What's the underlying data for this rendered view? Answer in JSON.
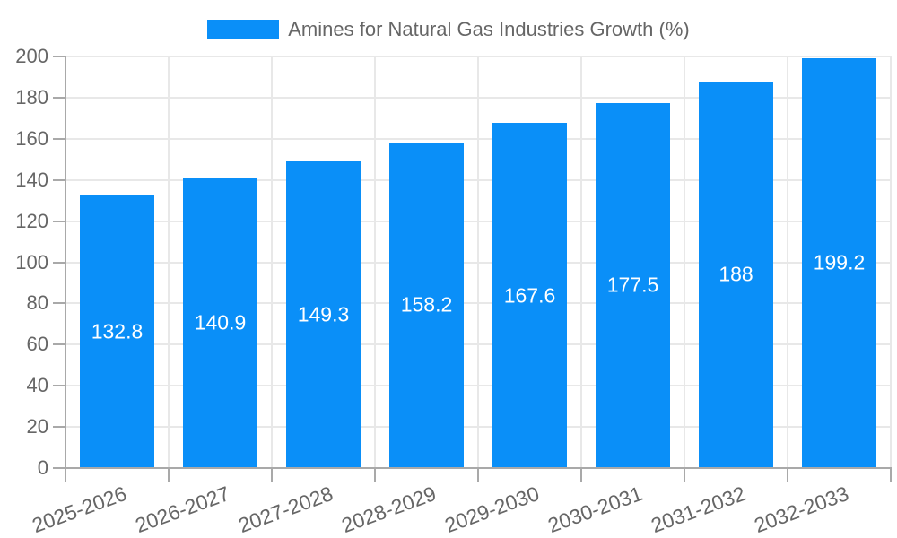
{
  "chart_data": {
    "type": "bar",
    "title": "Amines for Natural Gas Industries Growth (%)",
    "legend": {
      "label": "Amines for Natural Gas Industries Growth (%)",
      "position": "top-center"
    },
    "categories": [
      "2025-2026",
      "2026-2027",
      "2027-2028",
      "2028-2029",
      "2029-2030",
      "2030-2031",
      "2031-2032",
      "2032-2033"
    ],
    "series": [
      {
        "name": "Amines for Natural Gas Industries Growth (%)",
        "values": [
          132.8,
          140.9,
          149.3,
          158.2,
          167.6,
          177.5,
          188,
          199.2
        ],
        "value_labels": [
          "132.8",
          "140.9",
          "149.3",
          "158.2",
          "167.6",
          "177.5",
          "188",
          "199.2"
        ]
      }
    ],
    "xlabel": "",
    "ylabel": "",
    "ylim": [
      0,
      200
    ],
    "ytick_step": 20,
    "ytick_labels": [
      "0",
      "20",
      "40",
      "60",
      "80",
      "100",
      "120",
      "140",
      "160",
      "180",
      "200"
    ],
    "grid": true,
    "x_label_rotation_deg": -20,
    "colors": {
      "bar": "#0a8ff8",
      "bar_value_text": "#ffffff",
      "axis_text": "#666666",
      "grid_line": "#e8e8e8",
      "axis_line": "#a9a9a9",
      "tick_mark": "#a9a9a9",
      "background": "#ffffff"
    }
  }
}
